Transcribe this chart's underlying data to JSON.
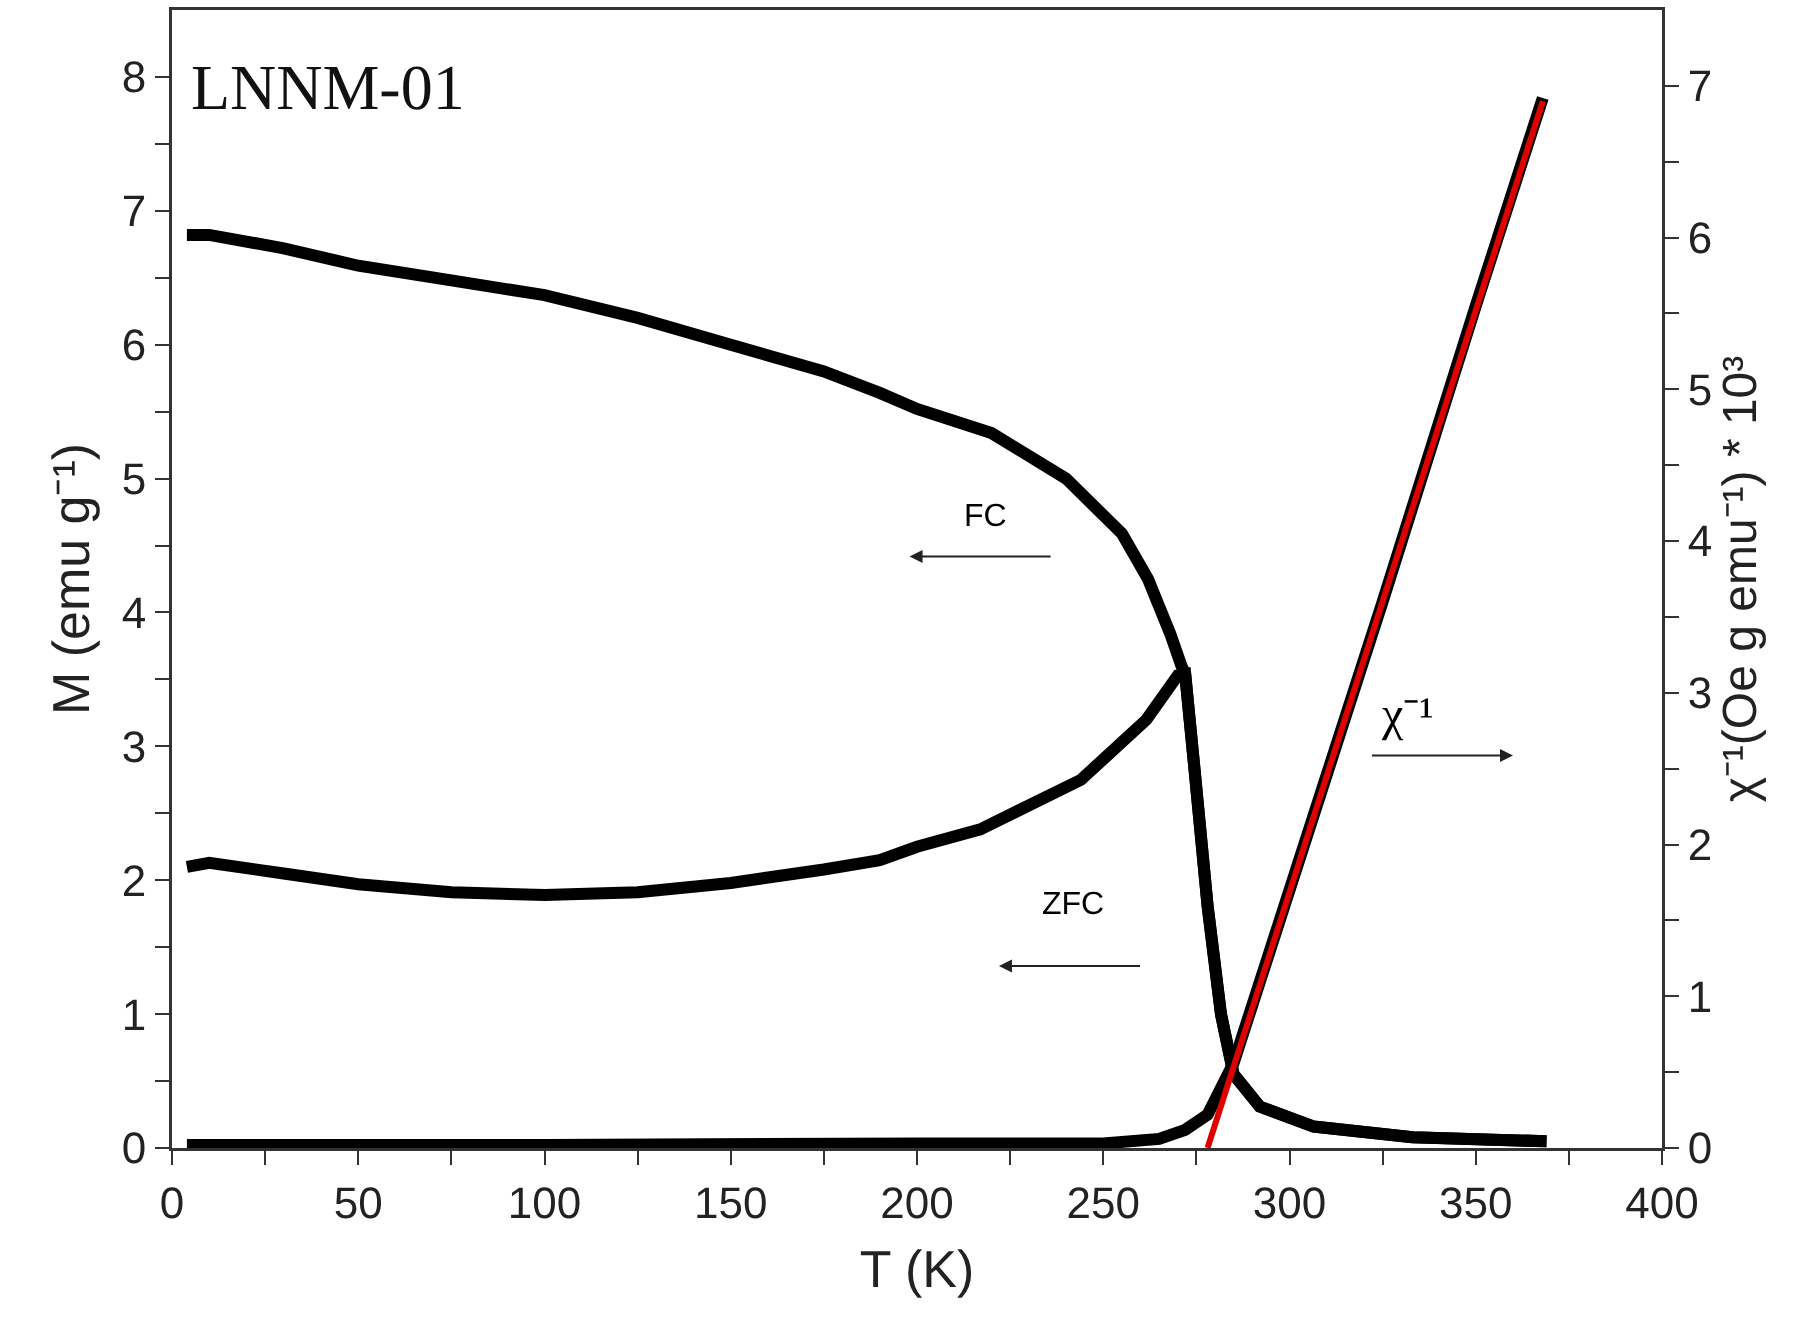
{
  "chart_data": {
    "type": "line",
    "title": "LNNM-01",
    "xlabel": "T (K)",
    "ylabel": "M (emu g⁻¹)",
    "y2label": "χ⁻¹(Oe g emu⁻¹) * 10³",
    "series": [
      {
        "name": "FC",
        "color": "#000000",
        "x": [
          4,
          10,
          30,
          50,
          75,
          100,
          125,
          150,
          175,
          190,
          200,
          220,
          240,
          255,
          262,
          268,
          271,
          272,
          274.6,
          278,
          281.6,
          285,
          292,
          306.5,
          333,
          369
        ],
        "values": [
          6.82,
          6.82,
          6.72,
          6.59,
          6.48,
          6.37,
          6.2,
          6.0,
          5.8,
          5.64,
          5.52,
          5.34,
          5.0,
          4.59,
          4.25,
          3.84,
          3.6,
          3.54,
          2.8,
          1.81,
          1.0,
          0.55,
          0.31,
          0.16,
          0.08,
          0.05
        ]
      },
      {
        "name": "ZFC",
        "color": "#000000",
        "x": [
          4,
          10,
          30,
          50,
          75,
          100,
          125,
          150,
          175,
          190,
          200,
          217,
          244,
          261.6,
          270,
          272,
          274.6,
          278,
          281.6,
          285,
          292,
          306.5,
          333,
          369
        ],
        "values": [
          2.1,
          2.13,
          2.05,
          1.97,
          1.91,
          1.89,
          1.91,
          1.98,
          2.08,
          2.15,
          2.25,
          2.38,
          2.75,
          3.2,
          3.53,
          3.54,
          2.8,
          1.81,
          1.0,
          0.55,
          0.31,
          0.16,
          0.08,
          0.05
        ]
      },
      {
        "name": "χ⁻¹",
        "color": "#000000",
        "axis": "y2",
        "x": [
          4,
          100,
          200,
          250,
          265,
          272,
          278,
          285,
          300,
          325,
          350,
          368
        ],
        "values": [
          0.02,
          0.02,
          0.03,
          0.03,
          0.06,
          0.12,
          0.22,
          0.56,
          1.7,
          3.6,
          5.55,
          6.92
        ]
      },
      {
        "type": "line",
        "color": "#e00000",
        "axis": "y2",
        "x": [
          278,
          368
        ],
        "values": [
          0,
          6.9
        ]
      }
    ],
    "xlim": [
      0,
      400
    ],
    "xticks": [
      0,
      {
        "value": 25,
        "label": null
      },
      50,
      {
        "value": 75,
        "label": null
      },
      100,
      {
        "value": 125,
        "label": null
      },
      150,
      {
        "value": 175,
        "label": null
      },
      200,
      {
        "value": 225,
        "label": null
      },
      250,
      {
        "value": 275,
        "label": null
      },
      300,
      {
        "value": 325,
        "label": null
      },
      350,
      {
        "value": 375,
        "label": null
      },
      400
    ],
    "ylim": [
      0,
      8.5
    ],
    "yticks": [
      0,
      {
        "value": 0.5,
        "label": null
      },
      1,
      {
        "value": 1.5,
        "label": null
      },
      2,
      {
        "value": 2.5,
        "label": null
      },
      3,
      {
        "value": 3.5,
        "label": null
      },
      4,
      {
        "value": 4.5,
        "label": null
      },
      5,
      {
        "value": 5.5,
        "label": null
      },
      6,
      {
        "value": 6.5,
        "label": null
      },
      7,
      {
        "value": 7.5,
        "label": null
      },
      8
    ],
    "y2lim": [
      0,
      7.5
    ],
    "y2ticks": [
      0,
      {
        "value": 0.5,
        "label": null
      },
      1,
      {
        "value": 1.5,
        "label": null
      },
      2,
      {
        "value": 2.5,
        "label": null
      },
      3,
      {
        "value": 3.5,
        "label": null
      },
      4,
      {
        "value": 4.5,
        "label": null
      },
      5,
      {
        "value": 5.5,
        "label": null
      },
      6,
      {
        "value": 6.5,
        "label": null
      },
      7
    ],
    "grid": false,
    "legend": false,
    "marker": "none",
    "line_style": "solid"
  }
}
